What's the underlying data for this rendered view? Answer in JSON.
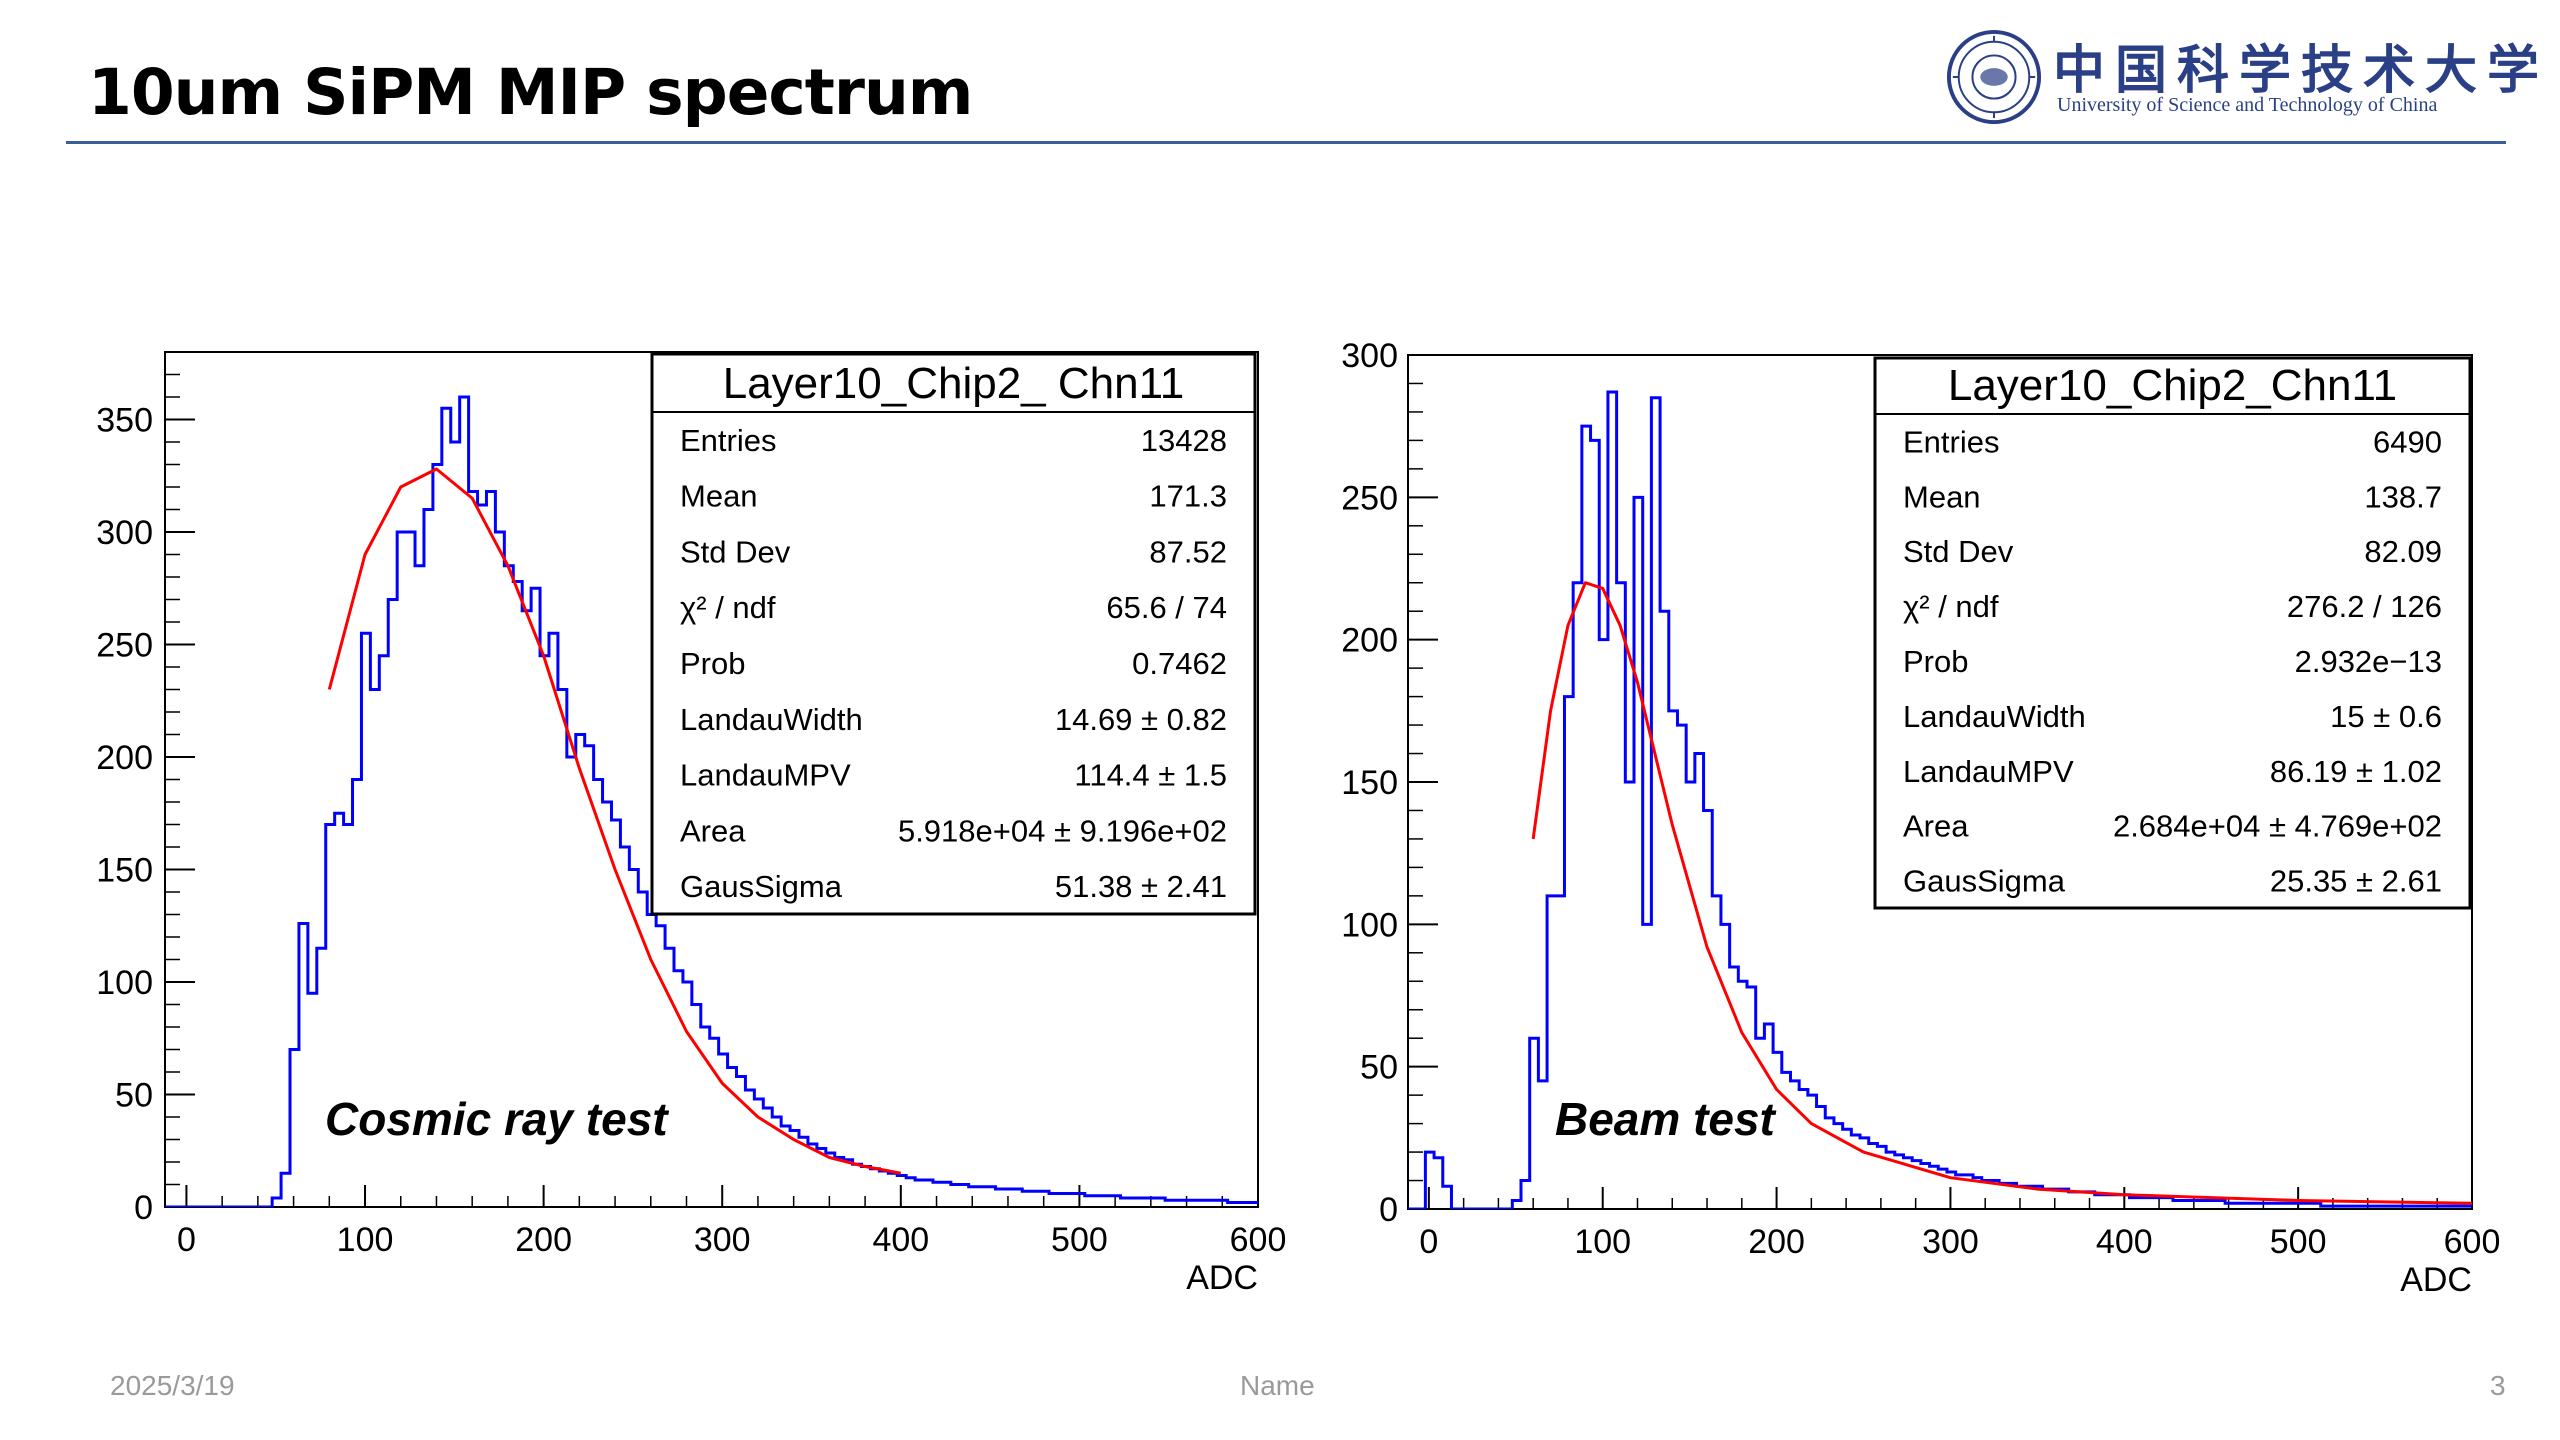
{
  "slide": {
    "title": "10um SiPM MIP spectrum",
    "logo_cn": "中国科学技术大学",
    "logo_en": "University of Science and Technology of China",
    "footer_date": "2025/3/19",
    "footer_name": "Name",
    "footer_page": "3"
  },
  "colors": {
    "histogram": "#0000ff",
    "fit": "#ff0000",
    "rule": "#3a5d9c",
    "logo": "#2a3f85"
  },
  "chart_data": [
    {
      "type": "histogram",
      "annotation": "Cosmic ray test",
      "xlabel": "ADC",
      "ylabel": "",
      "xlim": [
        -12,
        600
      ],
      "ylim": [
        0,
        380
      ],
      "xticks": [
        0,
        100,
        200,
        300,
        400,
        500,
        600
      ],
      "yticks": [
        0,
        50,
        100,
        150,
        200,
        250,
        300,
        350
      ],
      "grid": false,
      "stats_box": {
        "title": "Layer10_Chip2_ Chn11",
        "rows": [
          [
            "Entries",
            "13428"
          ],
          [
            "Mean",
            "171.3"
          ],
          [
            "Std Dev",
            "87.52"
          ],
          [
            "χ² / ndf",
            "65.6 / 74"
          ],
          [
            "Prob",
            "0.7462"
          ],
          [
            "LandauWidth",
            "14.69 ± 0.82"
          ],
          [
            "LandauMPV",
            "114.4 ± 1.5"
          ],
          [
            "Area",
            "5.918e+04 ± 9.196e+02"
          ],
          [
            "GausSigma",
            "51.38 ± 2.41"
          ]
        ]
      },
      "hist": {
        "bin_width": 5,
        "x_start": -12,
        "counts": [
          0,
          0,
          0,
          0,
          0,
          0,
          0,
          0,
          0,
          0,
          0,
          0,
          4,
          15,
          70,
          126,
          95,
          115,
          170,
          175,
          170,
          190,
          255,
          230,
          245,
          270,
          300,
          300,
          285,
          310,
          330,
          355,
          340,
          360,
          318,
          312,
          318,
          300,
          285,
          278,
          265,
          275,
          245,
          255,
          230,
          200,
          210,
          205,
          190,
          180,
          172,
          160,
          150,
          140,
          130,
          125,
          115,
          105,
          100,
          90,
          80,
          75,
          68,
          62,
          58,
          52,
          48,
          44,
          40,
          36,
          34,
          31,
          28,
          26,
          24,
          22,
          21,
          19,
          18,
          17,
          16,
          15,
          14,
          13,
          12,
          12,
          11,
          11,
          10,
          10,
          9,
          9,
          9,
          8,
          8,
          8,
          7,
          7,
          7,
          6,
          6,
          6,
          6,
          5,
          5,
          5,
          5,
          4,
          4,
          4,
          4,
          4,
          3,
          3,
          3,
          3,
          3,
          3,
          3,
          2,
          2,
          2,
          2,
          2,
          2,
          2,
          2,
          2
        ]
      },
      "fit_curve": {
        "x": [
          80,
          100,
          120,
          140,
          160,
          180,
          200,
          220,
          240,
          260,
          280,
          300,
          320,
          340,
          360,
          380,
          400
        ],
        "y": [
          230,
          290,
          320,
          328,
          315,
          285,
          245,
          195,
          150,
          110,
          78,
          55,
          40,
          30,
          22,
          18,
          15
        ]
      }
    },
    {
      "type": "histogram",
      "annotation": "Beam test",
      "xlabel": "ADC",
      "ylabel": "",
      "xlim": [
        -12,
        600
      ],
      "ylim": [
        0,
        300
      ],
      "xticks": [
        0,
        100,
        200,
        300,
        400,
        500,
        600
      ],
      "yticks": [
        0,
        50,
        100,
        150,
        200,
        250,
        300
      ],
      "grid": false,
      "stats_box": {
        "title": "Layer10_Chip2_Chn11",
        "rows": [
          [
            "Entries",
            "6490"
          ],
          [
            "Mean",
            "138.7"
          ],
          [
            "Std Dev",
            "82.09"
          ],
          [
            "χ² / ndf",
            "276.2 / 126"
          ],
          [
            "Prob",
            "2.932e−13"
          ],
          [
            "LandauWidth",
            "15 ± 0.6"
          ],
          [
            "LandauMPV",
            "86.19 ± 1.02"
          ],
          [
            "Area",
            "2.684e+04 ± 4.769e+02"
          ],
          [
            "GausSigma",
            "25.35 ± 2.61"
          ]
        ]
      },
      "hist": {
        "bin_width": 5,
        "x_start": -12,
        "counts": [
          0,
          0,
          20,
          18,
          8,
          0,
          0,
          0,
          0,
          0,
          0,
          0,
          3,
          10,
          60,
          45,
          110,
          110,
          180,
          220,
          275,
          270,
          200,
          287,
          220,
          150,
          250,
          100,
          285,
          210,
          175,
          170,
          150,
          160,
          140,
          110,
          100,
          85,
          80,
          78,
          60,
          65,
          55,
          48,
          45,
          42,
          40,
          36,
          32,
          30,
          28,
          26,
          25,
          23,
          22,
          20,
          19,
          18,
          17,
          16,
          15,
          14,
          13,
          12,
          12,
          11,
          10,
          10,
          9,
          9,
          8,
          8,
          8,
          7,
          7,
          7,
          6,
          6,
          6,
          5,
          5,
          5,
          5,
          4,
          4,
          4,
          4,
          4,
          3,
          3,
          3,
          3,
          3,
          3,
          2,
          2,
          2,
          2,
          2,
          2,
          2,
          2,
          2,
          2,
          2,
          1,
          1,
          1,
          1,
          1,
          1,
          1,
          1,
          1,
          1,
          1,
          1,
          1,
          1,
          1,
          1,
          1,
          1,
          1
        ]
      },
      "fit_curve": {
        "x": [
          60,
          70,
          80,
          90,
          100,
          110,
          120,
          130,
          140,
          160,
          180,
          200,
          220,
          250,
          300,
          350,
          400,
          450,
          500,
          600
        ],
        "y": [
          130,
          175,
          205,
          220,
          218,
          205,
          185,
          160,
          135,
          92,
          62,
          42,
          30,
          20,
          11,
          7,
          5,
          4,
          3,
          2
        ]
      }
    }
  ]
}
